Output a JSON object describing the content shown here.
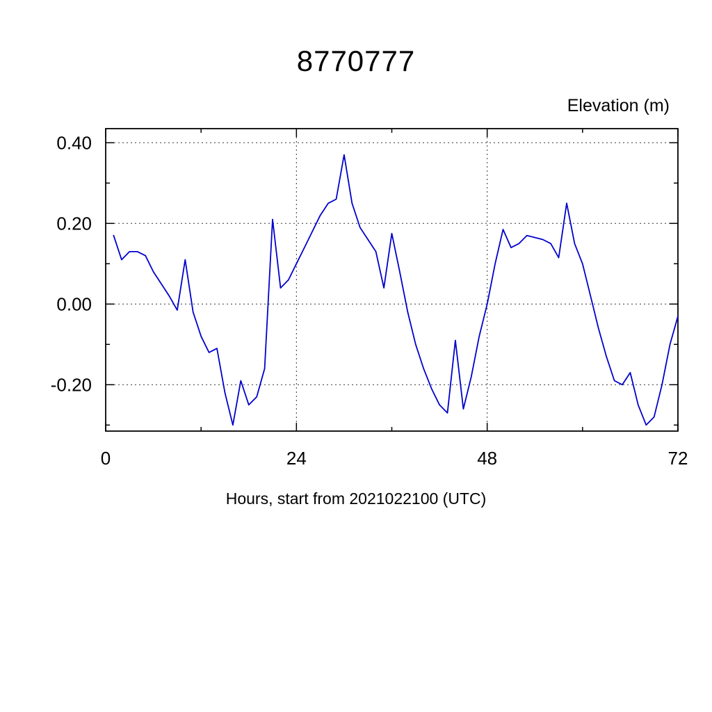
{
  "page": {
    "title": "8770777",
    "right_axis_label": "Elevation (m)",
    "x_axis_label": "Hours, start from 2021022100 (UTC)"
  },
  "chart_data": {
    "type": "line",
    "title": "8770777",
    "xlabel": "Hours, start from 2021022100 (UTC)",
    "ylabel": "Elevation (m)",
    "x": [
      1,
      2,
      3,
      4,
      5,
      6,
      7,
      8,
      9,
      10,
      11,
      12,
      13,
      14,
      15,
      16,
      17,
      18,
      19,
      20,
      21,
      22,
      23,
      24,
      25,
      26,
      27,
      28,
      29,
      30,
      31,
      32,
      33,
      34,
      35,
      36,
      37,
      38,
      39,
      40,
      41,
      42,
      43,
      44,
      45,
      46,
      47,
      48,
      49,
      50,
      51,
      52,
      53,
      54,
      55,
      56,
      57,
      58,
      59,
      60,
      61,
      62,
      63,
      64,
      65,
      66,
      67,
      68,
      69,
      70,
      71,
      72
    ],
    "series": [
      {
        "name": "Elevation",
        "color": "#0000cc",
        "values": [
          0.17,
          0.11,
          0.13,
          0.13,
          0.12,
          0.08,
          0.05,
          0.02,
          -0.015,
          0.11,
          -0.02,
          -0.08,
          -0.12,
          -0.11,
          -0.22,
          -0.3,
          -0.19,
          -0.25,
          -0.23,
          -0.16,
          0.21,
          0.04,
          0.06,
          0.1,
          0.14,
          0.18,
          0.22,
          0.25,
          0.26,
          0.37,
          0.25,
          0.19,
          0.16,
          0.13,
          0.04,
          0.175,
          0.08,
          -0.02,
          -0.1,
          -0.16,
          -0.21,
          -0.25,
          -0.27,
          -0.09,
          -0.26,
          -0.18,
          -0.08,
          0.0,
          0.1,
          0.185,
          0.14,
          0.15,
          0.17,
          0.165,
          0.16,
          0.15,
          0.115,
          0.25,
          0.15,
          0.1,
          0.02,
          -0.06,
          -0.13,
          -0.19,
          -0.2,
          -0.17,
          -0.25,
          -0.3,
          -0.28,
          -0.2,
          -0.1,
          -0.03
        ]
      }
    ],
    "xlim": [
      0,
      72
    ],
    "ylim": [
      -0.315,
      0.435
    ],
    "xticks": [
      0,
      24,
      48,
      72
    ],
    "xtick_labels": [
      "0",
      "24",
      "48",
      "72"
    ],
    "xticks_minor": [
      12,
      36,
      60
    ],
    "yticks": [
      -0.2,
      0.0,
      0.2,
      0.4
    ],
    "ytick_labels": [
      "-0.20",
      "0.00",
      "0.20",
      "0.40"
    ],
    "yticks_minor": [
      -0.3,
      -0.1,
      0.1,
      0.3
    ],
    "grid": "dashed",
    "legend": "none",
    "grid_color": "#333333",
    "axis_color": "#000000",
    "line_color": "#0000cc"
  }
}
